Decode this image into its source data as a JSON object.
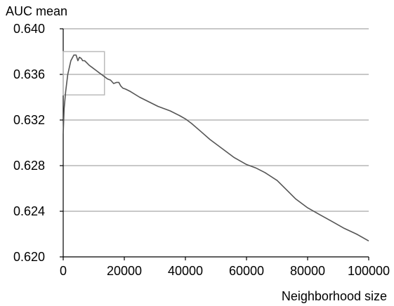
{
  "chart_data": {
    "type": "line",
    "title": "",
    "ylabel": "AUC mean",
    "xlabel": "Neighborhood size",
    "xlim": [
      0,
      100000
    ],
    "ylim": [
      0.62,
      0.64
    ],
    "xticks": [
      0,
      20000,
      40000,
      60000,
      80000,
      100000
    ],
    "xtick_labels": [
      "0",
      "20000",
      "40000",
      "60000",
      "80000",
      "100000"
    ],
    "yticks": [
      0.62,
      0.624,
      0.628,
      0.632,
      0.636,
      0.64
    ],
    "ytick_labels": [
      "0.620",
      "0.624",
      "0.628",
      "0.632",
      "0.636",
      "0.640"
    ],
    "grid": "horizontal",
    "legend": "none",
    "line_color": "#555555",
    "grid_color": "#a6a6a6",
    "highlight_box": {
      "x": [
        0,
        13500
      ],
      "y": [
        0.6342,
        0.638
      ],
      "color": "#bbbbbb"
    },
    "series": [
      {
        "x": [
          0,
          300,
          800,
          1500,
          2500,
          3500,
          4200,
          4800,
          5300,
          5900,
          6400,
          7000,
          7800,
          8500,
          9500,
          10500,
          11500,
          12500,
          13500,
          14500,
          15500,
          16500,
          17500,
          18200,
          18800,
          19500,
          20500,
          22000,
          25000,
          28000,
          31000,
          35000,
          38000,
          40000,
          42000,
          45000,
          48000,
          52000,
          56000,
          60000,
          63000,
          66000,
          70000,
          73000,
          76000,
          80000,
          84000,
          88000,
          92000,
          96000,
          100000
        ],
        "values": [
          0.6308,
          0.633,
          0.6345,
          0.636,
          0.6372,
          0.6377,
          0.6377,
          0.6372,
          0.6375,
          0.6374,
          0.6372,
          0.6372,
          0.637,
          0.6368,
          0.6366,
          0.6364,
          0.6362,
          0.636,
          0.6358,
          0.6356,
          0.6355,
          0.6352,
          0.6353,
          0.6353,
          0.635,
          0.6348,
          0.6347,
          0.6345,
          0.634,
          0.6336,
          0.6332,
          0.6328,
          0.6324,
          0.6321,
          0.6317,
          0.631,
          0.6303,
          0.6295,
          0.6287,
          0.6281,
          0.6278,
          0.6274,
          0.6267,
          0.6259,
          0.6251,
          0.6243,
          0.6237,
          0.6231,
          0.6225,
          0.622,
          0.6214
        ]
      }
    ]
  }
}
